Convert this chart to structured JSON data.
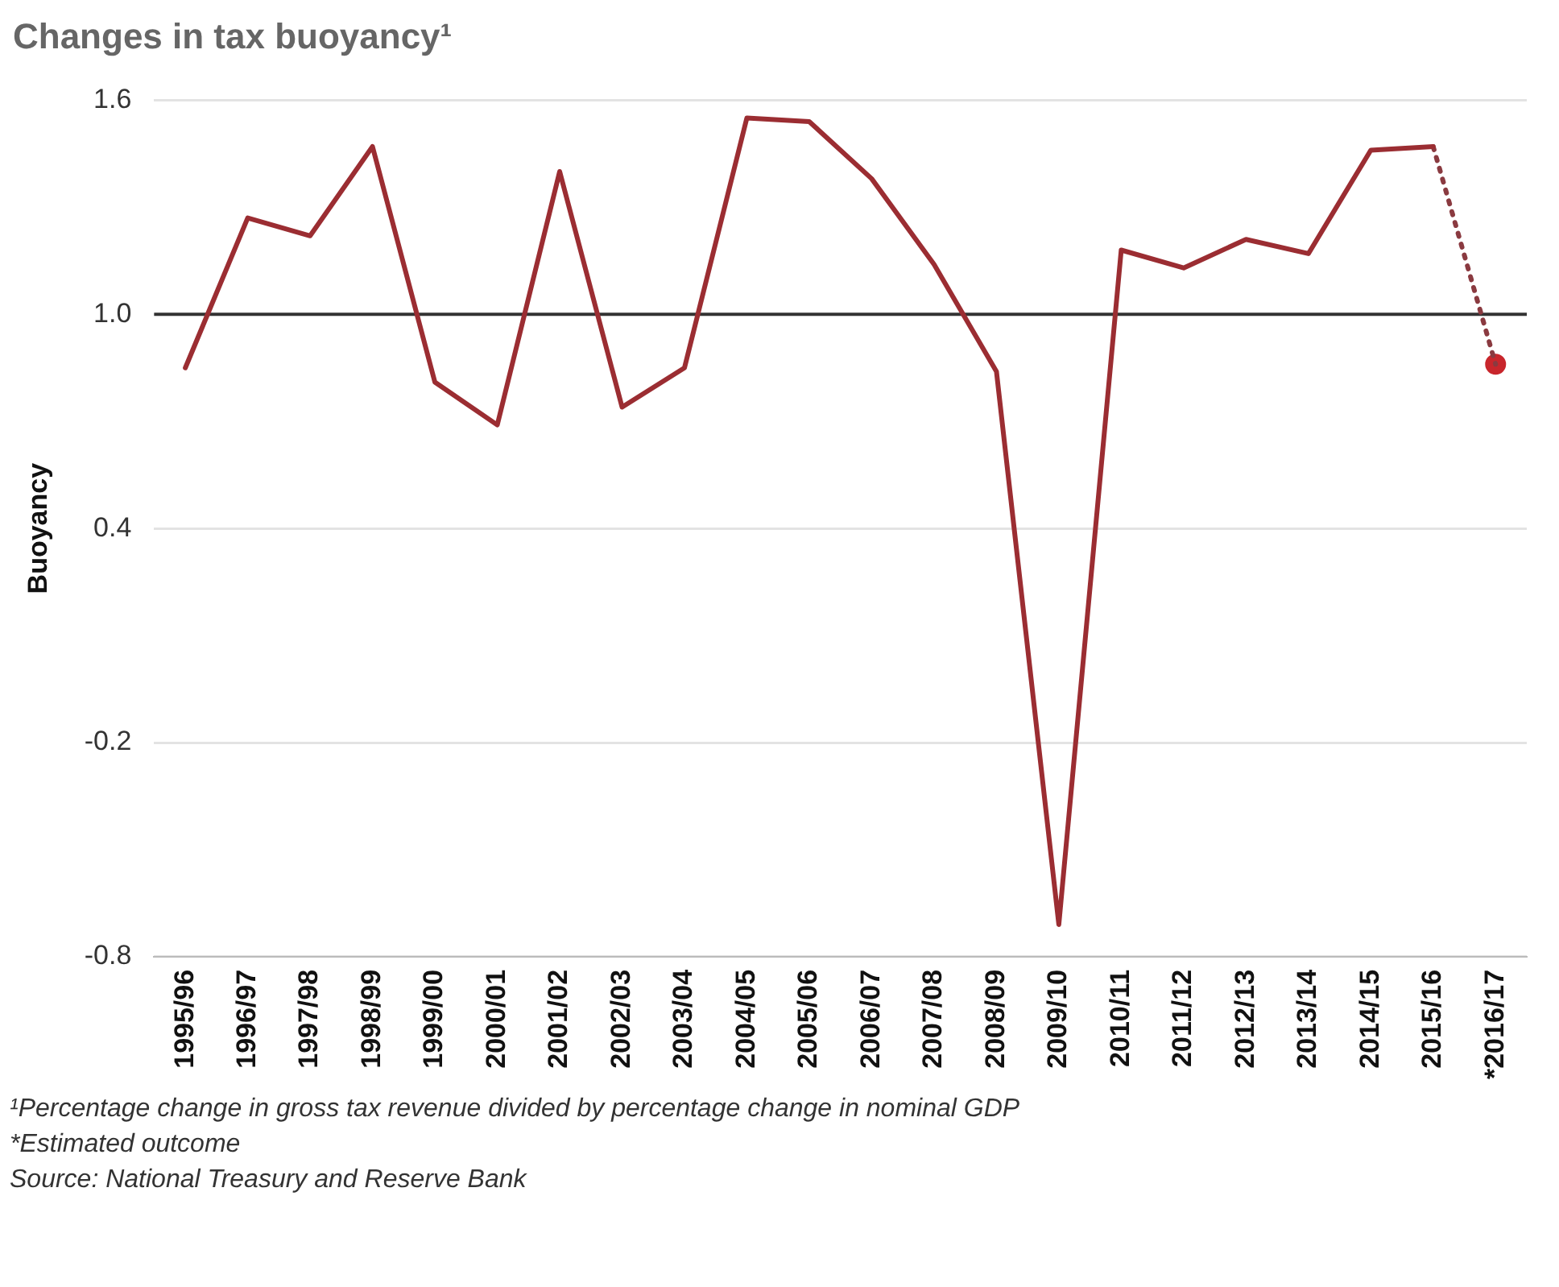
{
  "chart_data": {
    "type": "line",
    "title": "Changes in tax buoyancy¹",
    "ylabel": "Buoyancy",
    "categories": [
      "1995/96",
      "1996/97",
      "1997/98",
      "1998/99",
      "1999/00",
      "2000/01",
      "2001/02",
      "2002/03",
      "2003/04",
      "2004/05",
      "2005/06",
      "2006/07",
      "2007/08",
      "2008/09",
      "2009/10",
      "2010/11",
      "2011/12",
      "2012/13",
      "2013/14",
      "2014/15",
      "2015/16",
      "*2016/17"
    ],
    "series": [
      {
        "color": "#9b2d32",
        "marker": "none",
        "line_style": "solid",
        "values": [
          0.85,
          1.27,
          1.22,
          1.47,
          0.81,
          0.69,
          1.4,
          0.74,
          0.85,
          1.55,
          1.54,
          1.38,
          1.14,
          0.84,
          -0.71,
          1.18,
          1.13,
          1.21,
          1.17,
          1.46,
          1.47,
          null
        ]
      },
      {
        "color": "#8a3a40",
        "marker": "none",
        "line_style": "dotted",
        "values": [
          null,
          null,
          null,
          null,
          null,
          null,
          null,
          null,
          null,
          null,
          null,
          null,
          null,
          null,
          null,
          null,
          null,
          null,
          null,
          null,
          1.47,
          0.86
        ]
      },
      {
        "type": "scatter",
        "color": "#c8262c",
        "marker": "circle",
        "x": [
          "*2016/17"
        ],
        "values": [
          0.86
        ]
      }
    ],
    "ylim": [
      -0.8,
      1.6
    ],
    "yticks": [
      {
        "value": -0.8,
        "label": "-0.8"
      },
      {
        "value": -0.2,
        "label": "-0.2"
      },
      {
        "value": 0.4,
        "label": "0.4"
      },
      {
        "value": 1.0,
        "label": "1.0"
      },
      {
        "value": 1.6,
        "label": "1.6"
      }
    ],
    "grid": "y",
    "legend": false,
    "ref_lines": [
      {
        "axis": "y",
        "value": 1.0,
        "color": "#333333",
        "line_style": "solid"
      }
    ],
    "annotations": [
      "¹Percentage change in gross tax revenue divided by percentage change in nominal GDP",
      "*Estimated outcome",
      "Source: National Treasury and Reserve Bank"
    ]
  }
}
